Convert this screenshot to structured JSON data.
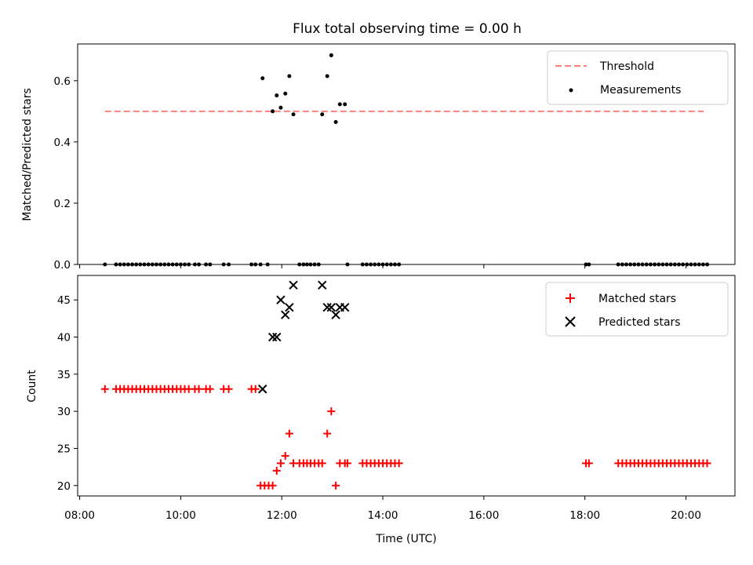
{
  "chart_data": {
    "title": "Flux total observing time = 0.00 h",
    "xlabel": "Time (UTC)",
    "x_range_hours": [
      7.96,
      20.97
    ],
    "x_ticks": [
      "08:00",
      "10:00",
      "12:00",
      "14:00",
      "16:00",
      "18:00",
      "20:00"
    ],
    "panels": [
      {
        "type": "scatter",
        "ylabel": "Matched/Predicted stars",
        "ylim": [
          0,
          0.72
        ],
        "y_ticks": [
          "0.0",
          "0.2",
          "0.4",
          "0.6"
        ],
        "grid": false,
        "legend_placement": "top-right",
        "series": [
          {
            "name": "Threshold",
            "kind": "dashed-line",
            "color": "#ff7f7f",
            "x_range_hours": [
              8.5,
              20.35
            ],
            "y": 0.5
          },
          {
            "name": "Measurements",
            "kind": "points",
            "color": "#000000",
            "points": [
              [
                8.5,
                0.0
              ],
              [
                8.72,
                0.0
              ],
              [
                8.8,
                0.0
              ],
              [
                8.88,
                0.0
              ],
              [
                8.96,
                0.0
              ],
              [
                9.04,
                0.0
              ],
              [
                9.12,
                0.0
              ],
              [
                9.2,
                0.0
              ],
              [
                9.28,
                0.0
              ],
              [
                9.36,
                0.0
              ],
              [
                9.44,
                0.0
              ],
              [
                9.52,
                0.0
              ],
              [
                9.6,
                0.0
              ],
              [
                9.68,
                0.0
              ],
              [
                9.76,
                0.0
              ],
              [
                9.84,
                0.0
              ],
              [
                9.92,
                0.0
              ],
              [
                10.0,
                0.0
              ],
              [
                10.08,
                0.0
              ],
              [
                10.16,
                0.0
              ],
              [
                10.28,
                0.0
              ],
              [
                10.36,
                0.0
              ],
              [
                10.5,
                0.0
              ],
              [
                10.58,
                0.0
              ],
              [
                10.85,
                0.0
              ],
              [
                10.95,
                0.0
              ],
              [
                11.4,
                0.0
              ],
              [
                11.48,
                0.0
              ],
              [
                11.58,
                0.0
              ],
              [
                11.72,
                0.0
              ],
              [
                11.62,
                0.608
              ],
              [
                11.82,
                0.5
              ],
              [
                11.9,
                0.552
              ],
              [
                11.98,
                0.512
              ],
              [
                12.07,
                0.558
              ],
              [
                12.15,
                0.615
              ],
              [
                12.23,
                0.49
              ],
              [
                12.35,
                0.0
              ],
              [
                12.43,
                0.0
              ],
              [
                12.5,
                0.0
              ],
              [
                12.57,
                0.0
              ],
              [
                12.65,
                0.0
              ],
              [
                12.73,
                0.0
              ],
              [
                12.8,
                0.49
              ],
              [
                12.9,
                0.615
              ],
              [
                12.98,
                0.683
              ],
              [
                13.07,
                0.465
              ],
              [
                13.15,
                0.523
              ],
              [
                13.25,
                0.523
              ],
              [
                13.3,
                0.0
              ],
              [
                13.6,
                0.0
              ],
              [
                13.68,
                0.0
              ],
              [
                13.76,
                0.0
              ],
              [
                13.84,
                0.0
              ],
              [
                13.92,
                0.0
              ],
              [
                14.0,
                0.0
              ],
              [
                14.08,
                0.0
              ],
              [
                14.16,
                0.0
              ],
              [
                14.24,
                0.0
              ],
              [
                14.32,
                0.0
              ],
              [
                18.02,
                0.0
              ],
              [
                18.08,
                0.0
              ],
              [
                18.66,
                0.0
              ],
              [
                18.74,
                0.0
              ],
              [
                18.82,
                0.0
              ],
              [
                18.9,
                0.0
              ],
              [
                18.98,
                0.0
              ],
              [
                19.06,
                0.0
              ],
              [
                19.14,
                0.0
              ],
              [
                19.22,
                0.0
              ],
              [
                19.3,
                0.0
              ],
              [
                19.38,
                0.0
              ],
              [
                19.46,
                0.0
              ],
              [
                19.54,
                0.0
              ],
              [
                19.62,
                0.0
              ],
              [
                19.7,
                0.0
              ],
              [
                19.78,
                0.0
              ],
              [
                19.86,
                0.0
              ],
              [
                19.94,
                0.0
              ],
              [
                20.02,
                0.0
              ],
              [
                20.1,
                0.0
              ],
              [
                20.18,
                0.0
              ],
              [
                20.26,
                0.0
              ],
              [
                20.34,
                0.0
              ],
              [
                20.42,
                0.0
              ]
            ]
          }
        ]
      },
      {
        "type": "scatter",
        "ylabel": "Count",
        "ylim": [
          18.6,
          48.3
        ],
        "y_ticks": [
          "20",
          "25",
          "30",
          "35",
          "40",
          "45"
        ],
        "grid": false,
        "legend_placement": "top-right",
        "series": [
          {
            "name": "Matched stars",
            "marker": "plus",
            "color": "#ff0000",
            "points": [
              [
                8.5,
                33
              ],
              [
                8.72,
                33
              ],
              [
                8.8,
                33
              ],
              [
                8.88,
                33
              ],
              [
                8.96,
                33
              ],
              [
                9.04,
                33
              ],
              [
                9.12,
                33
              ],
              [
                9.2,
                33
              ],
              [
                9.28,
                33
              ],
              [
                9.36,
                33
              ],
              [
                9.44,
                33
              ],
              [
                9.52,
                33
              ],
              [
                9.6,
                33
              ],
              [
                9.68,
                33
              ],
              [
                9.76,
                33
              ],
              [
                9.84,
                33
              ],
              [
                9.92,
                33
              ],
              [
                10.0,
                33
              ],
              [
                10.08,
                33
              ],
              [
                10.16,
                33
              ],
              [
                10.28,
                33
              ],
              [
                10.36,
                33
              ],
              [
                10.5,
                33
              ],
              [
                10.58,
                33
              ],
              [
                10.85,
                33
              ],
              [
                10.95,
                33
              ],
              [
                11.4,
                33
              ],
              [
                11.48,
                33
              ],
              [
                11.58,
                20
              ],
              [
                11.66,
                20
              ],
              [
                11.74,
                20
              ],
              [
                11.82,
                20
              ],
              [
                11.9,
                22
              ],
              [
                11.98,
                23
              ],
              [
                12.07,
                24
              ],
              [
                12.15,
                27
              ],
              [
                12.23,
                23
              ],
              [
                12.35,
                23
              ],
              [
                12.43,
                23
              ],
              [
                12.5,
                23
              ],
              [
                12.57,
                23
              ],
              [
                12.65,
                23
              ],
              [
                12.73,
                23
              ],
              [
                12.8,
                23
              ],
              [
                12.9,
                27
              ],
              [
                12.98,
                30
              ],
              [
                13.07,
                20
              ],
              [
                13.15,
                23
              ],
              [
                13.25,
                23
              ],
              [
                13.3,
                23
              ],
              [
                13.6,
                23
              ],
              [
                13.68,
                23
              ],
              [
                13.76,
                23
              ],
              [
                13.84,
                23
              ],
              [
                13.92,
                23
              ],
              [
                14.0,
                23
              ],
              [
                14.08,
                23
              ],
              [
                14.16,
                23
              ],
              [
                14.24,
                23
              ],
              [
                14.32,
                23
              ],
              [
                18.02,
                23
              ],
              [
                18.08,
                23
              ],
              [
                18.66,
                23
              ],
              [
                18.74,
                23
              ],
              [
                18.82,
                23
              ],
              [
                18.9,
                23
              ],
              [
                18.98,
                23
              ],
              [
                19.06,
                23
              ],
              [
                19.14,
                23
              ],
              [
                19.22,
                23
              ],
              [
                19.3,
                23
              ],
              [
                19.38,
                23
              ],
              [
                19.46,
                23
              ],
              [
                19.54,
                23
              ],
              [
                19.62,
                23
              ],
              [
                19.7,
                23
              ],
              [
                19.78,
                23
              ],
              [
                19.86,
                23
              ],
              [
                19.94,
                23
              ],
              [
                20.02,
                23
              ],
              [
                20.1,
                23
              ],
              [
                20.18,
                23
              ],
              [
                20.26,
                23
              ],
              [
                20.34,
                23
              ],
              [
                20.42,
                23
              ]
            ]
          },
          {
            "name": "Predicted stars",
            "marker": "x",
            "color": "#000000",
            "points": [
              [
                11.62,
                33
              ],
              [
                11.82,
                40
              ],
              [
                11.9,
                40
              ],
              [
                11.98,
                45
              ],
              [
                12.07,
                43
              ],
              [
                12.15,
                44
              ],
              [
                12.23,
                47
              ],
              [
                12.8,
                47
              ],
              [
                12.9,
                44
              ],
              [
                12.98,
                44
              ],
              [
                13.07,
                43
              ],
              [
                13.15,
                44
              ],
              [
                13.25,
                44
              ]
            ]
          }
        ]
      }
    ]
  }
}
